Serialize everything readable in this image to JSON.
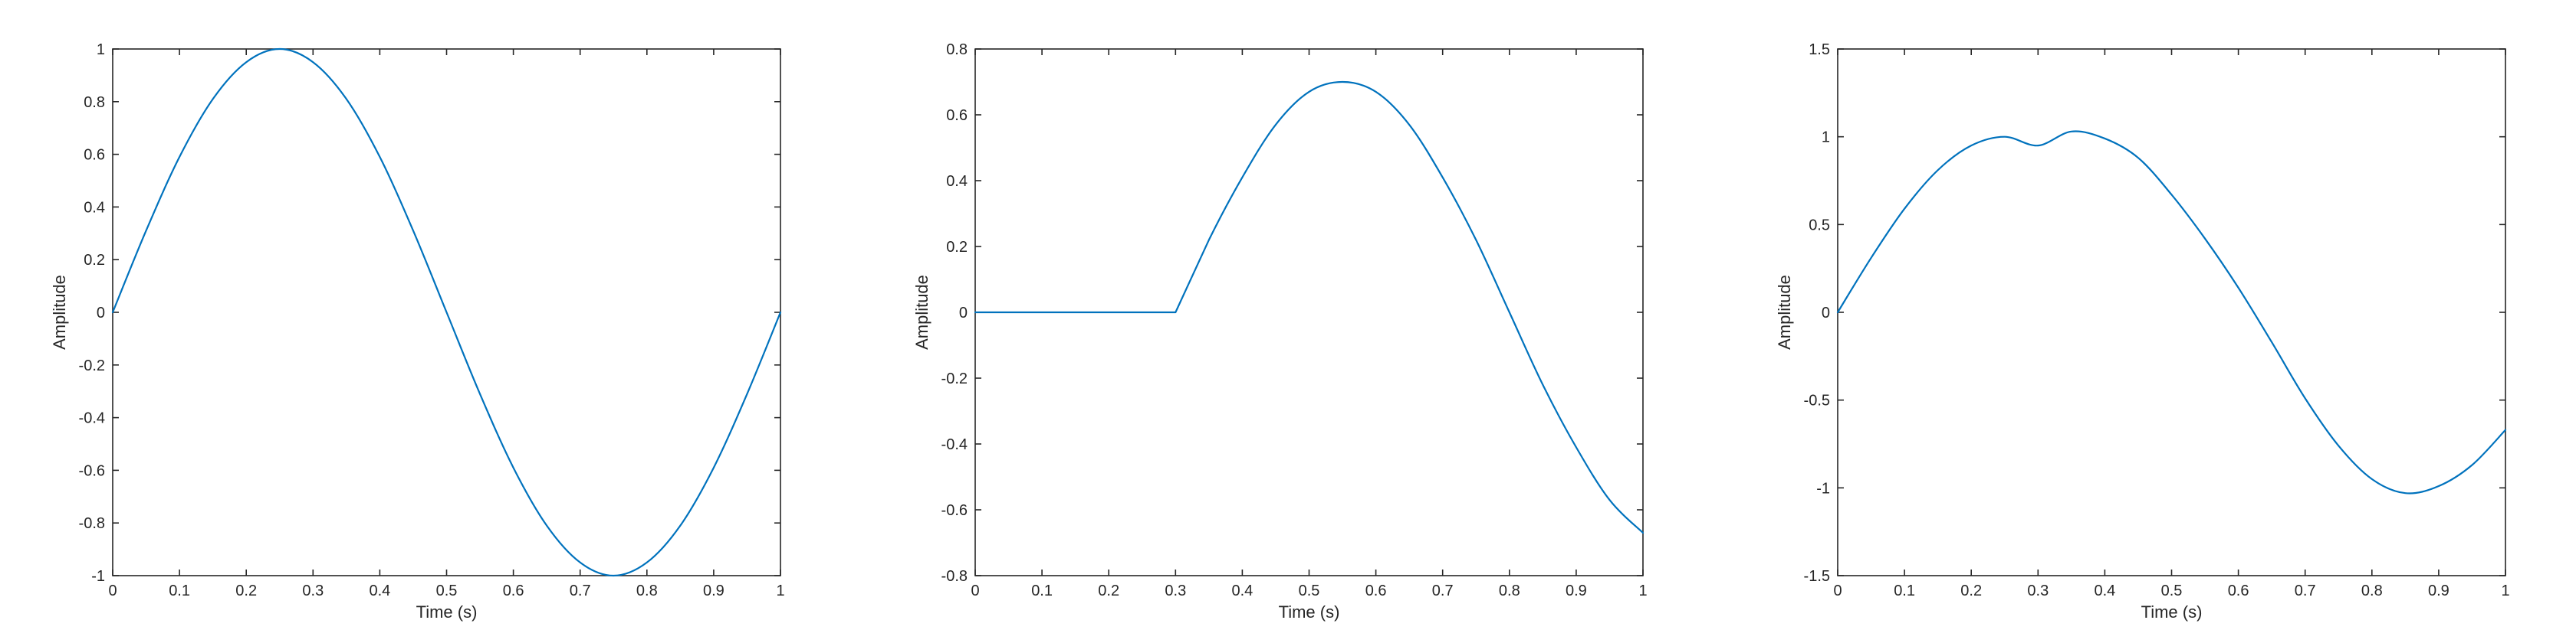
{
  "colors": {
    "series": "#0072BD",
    "axes": "#262626"
  },
  "chart_data": [
    {
      "type": "line",
      "xlabel": "Time (s)",
      "ylabel": "Amplitude",
      "xlim": [
        0,
        1
      ],
      "ylim": [
        -1,
        1
      ],
      "xticks": [
        0,
        0.1,
        0.2,
        0.3,
        0.4,
        0.5,
        0.6,
        0.7,
        0.8,
        0.9,
        1
      ],
      "xtick_labels": [
        "0",
        "0.1",
        "0.2",
        "0.3",
        "0.4",
        "0.5",
        "0.6",
        "0.7",
        "0.8",
        "0.9",
        "1"
      ],
      "yticks": [
        -1,
        -0.8,
        -0.6,
        -0.4,
        -0.2,
        0,
        0.2,
        0.4,
        0.6,
        0.8,
        1
      ],
      "ytick_labels": [
        "-1",
        "-0.8",
        "-0.6",
        "-0.4",
        "-0.2",
        "0",
        "0.2",
        "0.4",
        "0.6",
        "0.8",
        "1"
      ],
      "grid": false,
      "series": [
        {
          "x": [
            0,
            0.05,
            0.1,
            0.15,
            0.2,
            0.25,
            0.3,
            0.35,
            0.4,
            0.45,
            0.5,
            0.55,
            0.6,
            0.65,
            0.7,
            0.75,
            0.8,
            0.85,
            0.9,
            0.95,
            1
          ],
          "y": [
            0,
            0.31,
            0.59,
            0.81,
            0.95,
            1,
            0.95,
            0.81,
            0.59,
            0.31,
            0,
            -0.31,
            -0.59,
            -0.81,
            -0.95,
            -1,
            -0.95,
            -0.81,
            -0.59,
            -0.31,
            0
          ]
        }
      ]
    },
    {
      "type": "line",
      "xlabel": "Time (s)",
      "ylabel": "Amplitude",
      "xlim": [
        0,
        1
      ],
      "ylim": [
        -0.8,
        0.8
      ],
      "xticks": [
        0,
        0.1,
        0.2,
        0.3,
        0.4,
        0.5,
        0.6,
        0.7,
        0.8,
        0.9,
        1
      ],
      "xtick_labels": [
        "0",
        "0.1",
        "0.2",
        "0.3",
        "0.4",
        "0.5",
        "0.6",
        "0.7",
        "0.8",
        "0.9",
        "1"
      ],
      "yticks": [
        -0.8,
        -0.6,
        -0.4,
        -0.2,
        0,
        0.2,
        0.4,
        0.6,
        0.8
      ],
      "ytick_labels": [
        "-0.8",
        "-0.6",
        "-0.4",
        "-0.2",
        "0",
        "0.2",
        "0.4",
        "0.6",
        "0.8"
      ],
      "grid": false,
      "series": [
        {
          "x": [
            0,
            0.1,
            0.2,
            0.3,
            0.35,
            0.4,
            0.45,
            0.5,
            0.55,
            0.6,
            0.65,
            0.7,
            0.75,
            0.8,
            0.85,
            0.9,
            0.95,
            1
          ],
          "y": [
            0,
            0,
            0,
            0,
            0.22,
            0.41,
            0.57,
            0.67,
            0.7,
            0.67,
            0.57,
            0.41,
            0.22,
            0,
            -0.22,
            -0.41,
            -0.57,
            -0.67
          ]
        }
      ]
    },
    {
      "type": "line",
      "xlabel": "Time (s)",
      "ylabel": "Amplitude",
      "xlim": [
        0,
        1
      ],
      "ylim": [
        -1.5,
        1.5
      ],
      "xticks": [
        0,
        0.1,
        0.2,
        0.3,
        0.4,
        0.5,
        0.6,
        0.7,
        0.8,
        0.9,
        1
      ],
      "xtick_labels": [
        "0",
        "0.1",
        "0.2",
        "0.3",
        "0.4",
        "0.5",
        "0.6",
        "0.7",
        "0.8",
        "0.9",
        "1"
      ],
      "yticks": [
        -1.5,
        -1,
        -0.5,
        0,
        0.5,
        1,
        1.5
      ],
      "ytick_labels": [
        "-1.5",
        "-1",
        "-0.5",
        "0",
        "0.5",
        "1",
        "1.5"
      ],
      "grid": false,
      "series": [
        {
          "x": [
            0,
            0.05,
            0.1,
            0.15,
            0.2,
            0.25,
            0.3,
            0.35,
            0.4,
            0.45,
            0.5,
            0.55,
            0.6,
            0.65,
            0.7,
            0.75,
            0.8,
            0.85,
            0.9,
            0.95,
            1
          ],
          "y": [
            0,
            0.31,
            0.59,
            0.81,
            0.95,
            1,
            0.95,
            1.03,
            0.99,
            0.88,
            0.67,
            0.42,
            0.14,
            -0.17,
            -0.49,
            -0.76,
            -0.95,
            -1.03,
            -0.99,
            -0.87,
            -0.67
          ]
        }
      ]
    }
  ]
}
